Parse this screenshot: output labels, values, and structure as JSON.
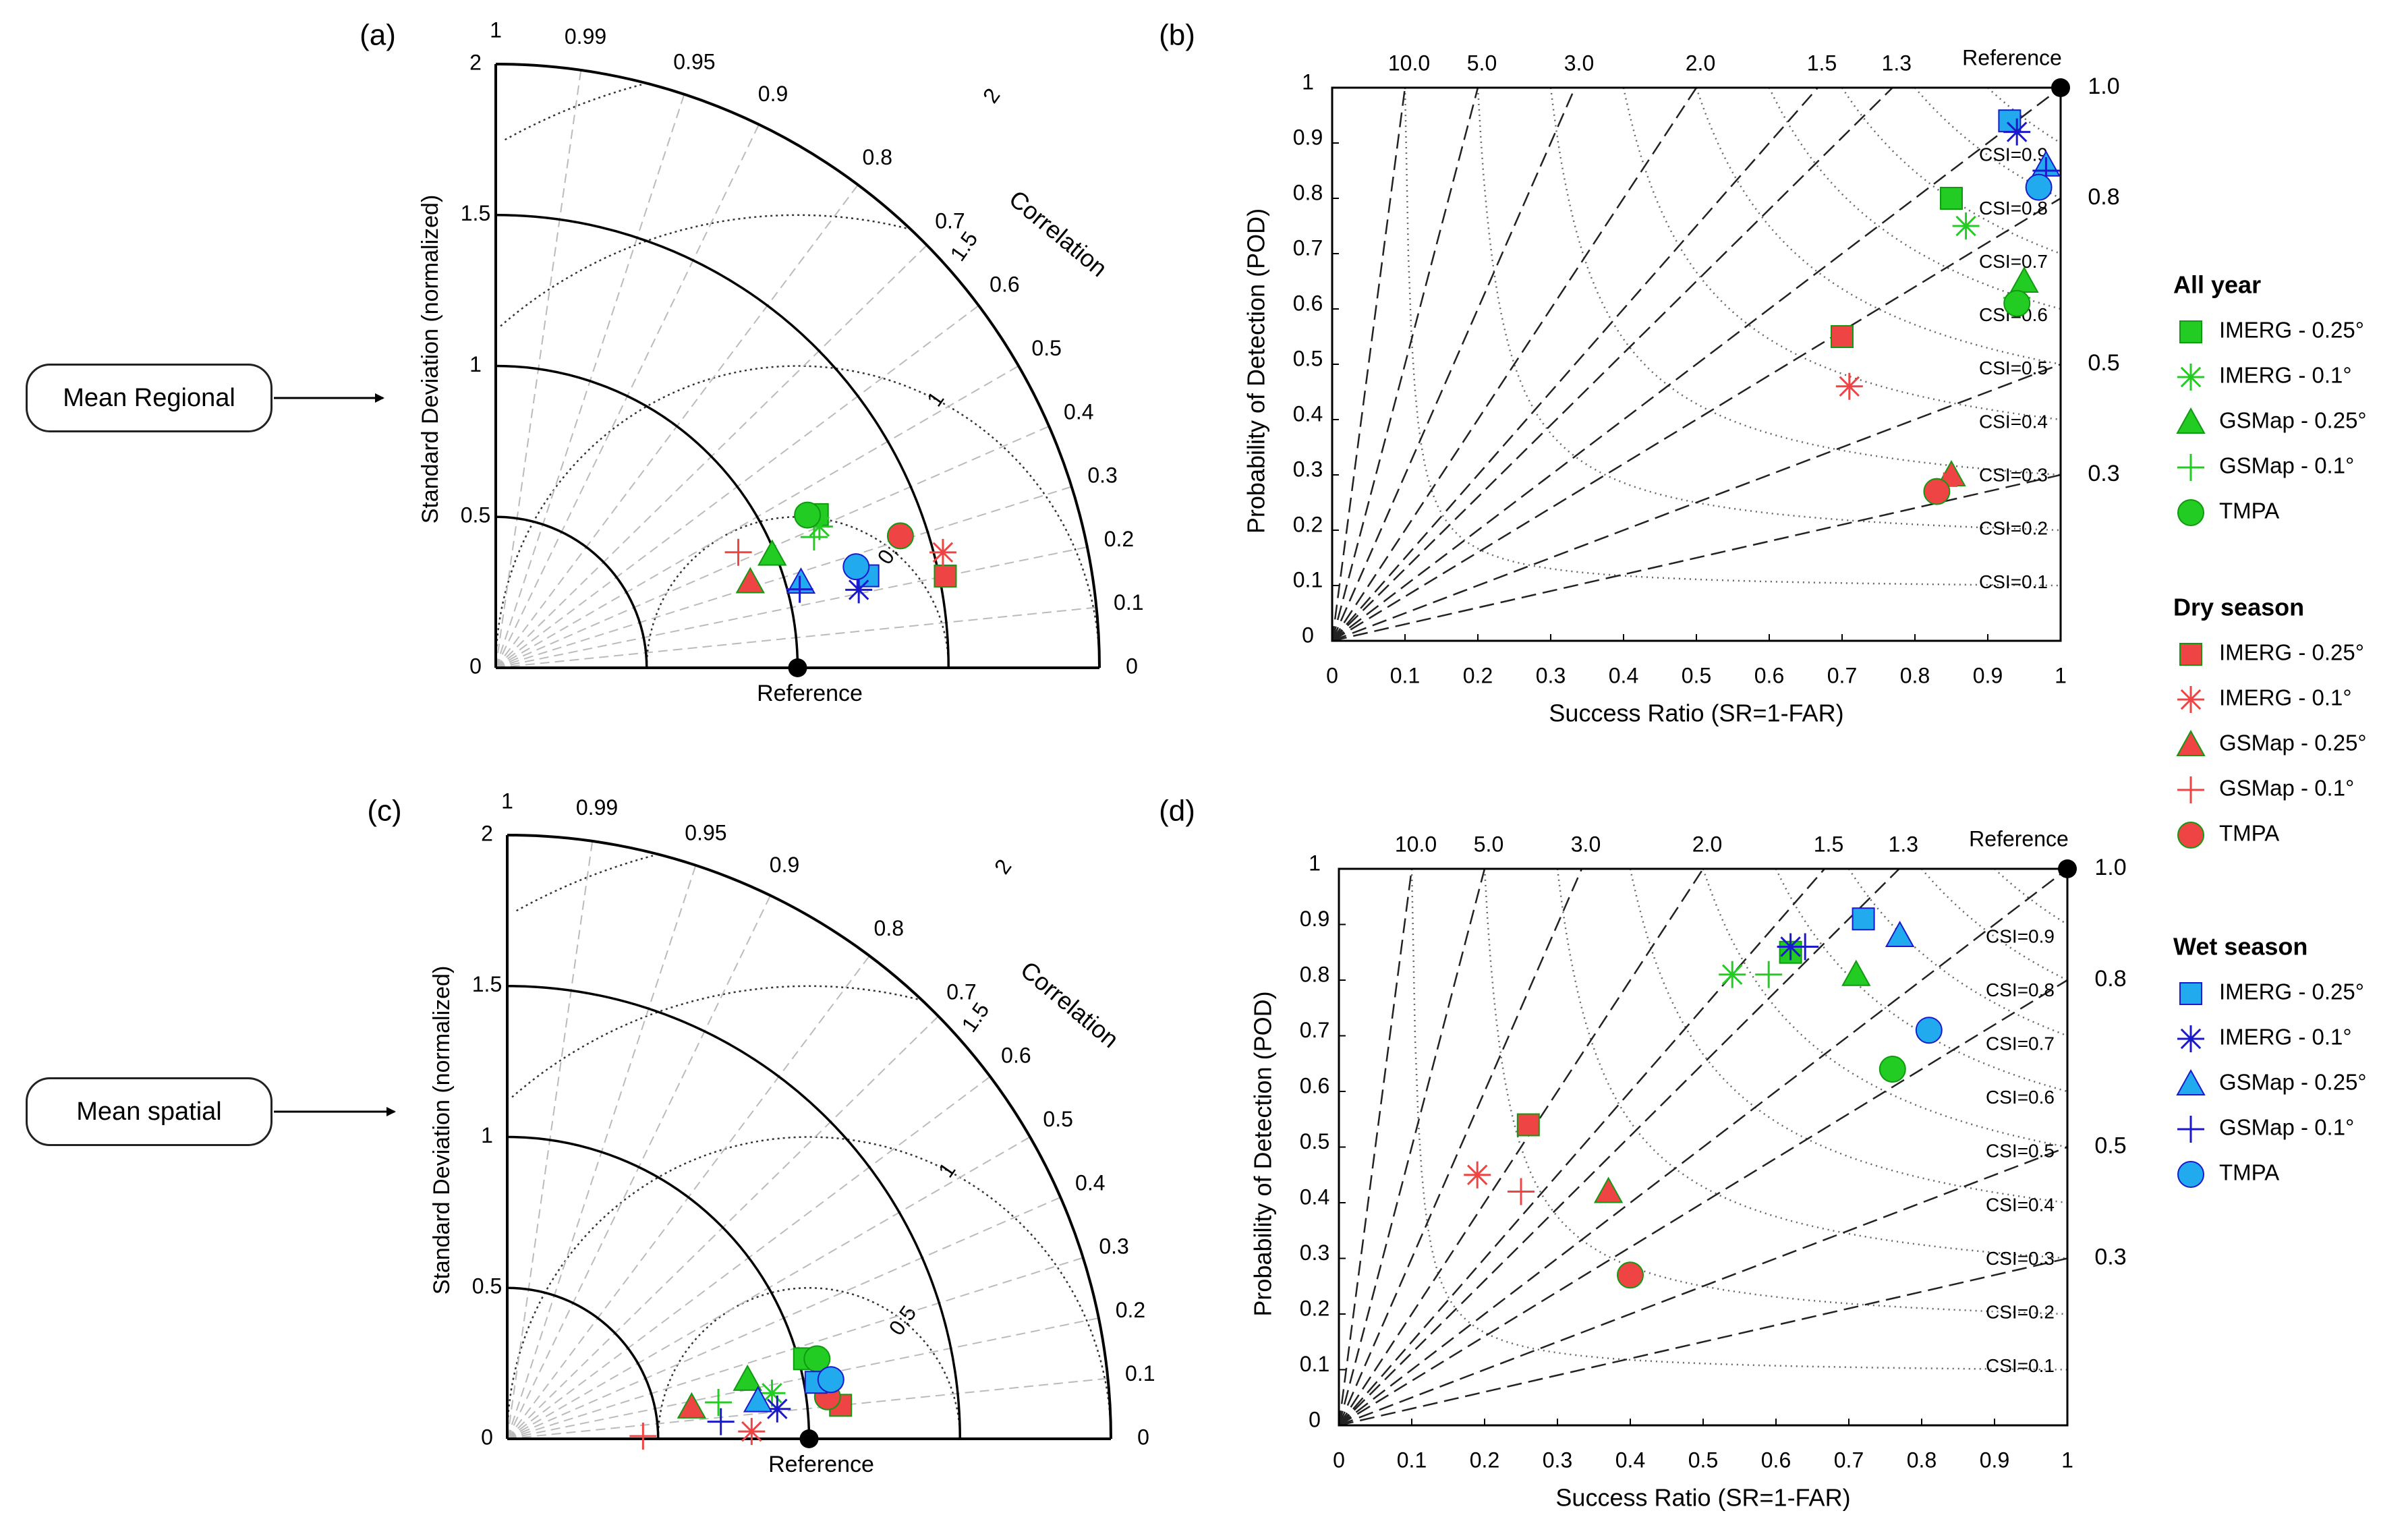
{
  "row_labels": {
    "top": "Mean Regional",
    "bottom": "Mean spatial"
  },
  "colors": {
    "all_year": "#22cc22",
    "dry_season": "#ee4444",
    "wet_season": "#22aaee",
    "wet_season_line": "#1a1acc"
  },
  "legend": {
    "groups": [
      {
        "title": "All year",
        "color_key": "all_year",
        "entries": [
          {
            "label": "IMERG - 0.25°",
            "marker": "square"
          },
          {
            "label": "IMERG - 0.1°",
            "marker": "asterisk"
          },
          {
            "label": "GSMap - 0.25°",
            "marker": "triangle"
          },
          {
            "label": "GSMap - 0.1°",
            "marker": "plus"
          },
          {
            "label": "TMPA",
            "marker": "circle"
          }
        ]
      },
      {
        "title": "Dry season",
        "color_key": "dry_season",
        "entries": [
          {
            "label": "IMERG - 0.25°",
            "marker": "square"
          },
          {
            "label": "IMERG - 0.1°",
            "marker": "asterisk"
          },
          {
            "label": "GSMap - 0.25°",
            "marker": "triangle"
          },
          {
            "label": "GSMap - 0.1°",
            "marker": "plus"
          },
          {
            "label": "TMPA",
            "marker": "circle"
          }
        ]
      },
      {
        "title": "Wet season",
        "color_key": "wet_season",
        "entries": [
          {
            "label": "IMERG - 0.25°",
            "marker": "square"
          },
          {
            "label": "IMERG - 0.1°",
            "marker": "asterisk"
          },
          {
            "label": "GSMap - 0.25°",
            "marker": "triangle"
          },
          {
            "label": "GSMap - 0.1°",
            "marker": "plus"
          },
          {
            "label": "TMPA",
            "marker": "circle"
          }
        ]
      }
    ]
  },
  "chart_data": [
    {
      "panel": "(a)",
      "type": "scatter",
      "subtype": "taylor_diagram",
      "ylabel": "Standard Deviation (normalized)",
      "angle_label": "Correlation",
      "reference_label": "Reference",
      "radial_ticks": [
        "0",
        "0.5",
        "1",
        "1.5",
        "2"
      ],
      "correlation_ticks": [
        "0",
        "0.1",
        "0.2",
        "0.3",
        "0.4",
        "0.5",
        "0.6",
        "0.7",
        "0.8",
        "0.9",
        "0.95",
        "0.99",
        "1"
      ],
      "rms_labels": [
        "0.5",
        "1",
        "1.5",
        "2"
      ],
      "reference_std": 1.0,
      "series": [
        {
          "group": "all_year",
          "points": [
            {
              "product": "IMERG - 0.25°",
              "marker": "square",
              "std": 1.18,
              "corr": 0.43
            },
            {
              "product": "IMERG - 0.1°",
              "marker": "asterisk",
              "std": 1.17,
              "corr": 0.4
            },
            {
              "product": "GSMap - 0.25°",
              "marker": "triangle",
              "std": 0.99,
              "corr": 0.38
            },
            {
              "product": "GSMap - 0.1°",
              "marker": "plus",
              "std": 1.14,
              "corr": 0.38
            },
            {
              "product": "TMPA",
              "marker": "circle",
              "std": 1.15,
              "corr": 0.44
            }
          ]
        },
        {
          "group": "dry_season",
          "points": [
            {
              "product": "IMERG - 0.25°",
              "marker": "square",
              "std": 1.52,
              "corr": 0.2
            },
            {
              "product": "IMERG - 0.1°",
              "marker": "asterisk",
              "std": 1.53,
              "corr": 0.25
            },
            {
              "product": "GSMap - 0.25°",
              "marker": "triangle",
              "std": 0.89,
              "corr": 0.32
            },
            {
              "product": "GSMap - 0.1°",
              "marker": "plus",
              "std": 0.89,
              "corr": 0.43
            },
            {
              "product": "TMPA",
              "marker": "circle",
              "std": 1.41,
              "corr": 0.31
            }
          ]
        },
        {
          "group": "wet_season",
          "points": [
            {
              "product": "IMERG - 0.25°",
              "marker": "square",
              "std": 1.27,
              "corr": 0.24
            },
            {
              "product": "IMERG - 0.1°",
              "marker": "asterisk",
              "std": 1.23,
              "corr": 0.21
            },
            {
              "product": "GSMap - 0.25°",
              "marker": "triangle",
              "std": 1.05,
              "corr": 0.27
            },
            {
              "product": "GSMap - 0.1°",
              "marker": "plus",
              "std": 1.04,
              "corr": 0.25
            },
            {
              "product": "TMPA",
              "marker": "circle",
              "std": 1.24,
              "corr": 0.27
            }
          ]
        }
      ]
    },
    {
      "panel": "(b)",
      "type": "scatter",
      "subtype": "performance_diagram",
      "xlabel": "Success Ratio (SR=1-FAR)",
      "ylabel": "Probability of Detection (POD)",
      "xlim": [
        0,
        1
      ],
      "ylim": [
        0,
        1
      ],
      "x_ticks": [
        "0",
        "0.1",
        "0.2",
        "0.3",
        "0.4",
        "0.5",
        "0.6",
        "0.7",
        "0.8",
        "0.9",
        "1"
      ],
      "y_ticks": [
        "0",
        "0.1",
        "0.2",
        "0.3",
        "0.4",
        "0.5",
        "0.6",
        "0.7",
        "0.8",
        "0.9",
        "1"
      ],
      "bias_labels": [
        "10.0",
        "5.0",
        "3.0",
        "2.0",
        "1.5",
        "1.3"
      ],
      "bias_values": [
        10,
        5,
        3,
        2,
        1.5,
        1.3,
        1.0,
        0.8,
        0.5,
        0.3
      ],
      "right_bias_labels": [
        "1.0",
        "0.8",
        "0.5",
        "0.3"
      ],
      "csi_labels": [
        "CSI=0.9",
        "CSI=0.8",
        "CSI=0.7",
        "CSI=0.6",
        "CSI=0.5",
        "CSI=0.4",
        "CSI=0.3",
        "CSI=0.2",
        "CSI=0.1"
      ],
      "reference_label": "Reference",
      "series": [
        {
          "group": "all_year",
          "points": [
            {
              "product": "IMERG - 0.25°",
              "marker": "square",
              "sr": 0.85,
              "pod": 0.8
            },
            {
              "product": "IMERG - 0.1°",
              "marker": "asterisk",
              "sr": 0.87,
              "pod": 0.75
            },
            {
              "product": "GSMap - 0.25°",
              "marker": "triangle",
              "sr": 0.95,
              "pod": 0.65
            },
            {
              "product": "GSMap - 0.1°",
              "marker": "plus",
              "sr": 0.94,
              "pod": 0.62
            },
            {
              "product": "TMPA",
              "marker": "circle",
              "sr": 0.94,
              "pod": 0.61
            }
          ]
        },
        {
          "group": "dry_season",
          "points": [
            {
              "product": "IMERG - 0.25°",
              "marker": "square",
              "sr": 0.7,
              "pod": 0.55
            },
            {
              "product": "IMERG - 0.1°",
              "marker": "asterisk",
              "sr": 0.71,
              "pod": 0.46
            },
            {
              "product": "GSMap - 0.25°",
              "marker": "triangle",
              "sr": 0.85,
              "pod": 0.3
            },
            {
              "product": "GSMap - 0.1°",
              "marker": "plus",
              "sr": 0.84,
              "pod": 0.28
            },
            {
              "product": "TMPA",
              "marker": "circle",
              "sr": 0.83,
              "pod": 0.27
            }
          ]
        },
        {
          "group": "wet_season",
          "points": [
            {
              "product": "IMERG - 0.25°",
              "marker": "square",
              "sr": 0.93,
              "pod": 0.94
            },
            {
              "product": "IMERG - 0.1°",
              "marker": "asterisk",
              "sr": 0.94,
              "pod": 0.92
            },
            {
              "product": "GSMap - 0.25°",
              "marker": "triangle",
              "sr": 0.98,
              "pod": 0.86
            },
            {
              "product": "GSMap - 0.1°",
              "marker": "plus",
              "sr": 0.98,
              "pod": 0.85
            },
            {
              "product": "TMPA",
              "marker": "circle",
              "sr": 0.97,
              "pod": 0.82
            }
          ]
        }
      ]
    },
    {
      "panel": "(c)",
      "type": "scatter",
      "subtype": "taylor_diagram",
      "ylabel": "Standard Deviation (normalized)",
      "angle_label": "Correlation",
      "reference_label": "Reference",
      "radial_ticks": [
        "0",
        "0.5",
        "1",
        "1.5",
        "2"
      ],
      "correlation_ticks": [
        "0",
        "0.1",
        "0.2",
        "0.3",
        "0.4",
        "0.5",
        "0.6",
        "0.7",
        "0.8",
        "0.9",
        "0.95",
        "0.99",
        "1"
      ],
      "rms_labels": [
        "0.5",
        "1",
        "1.5",
        "2"
      ],
      "reference_std": 1.0,
      "series": [
        {
          "group": "all_year",
          "points": [
            {
              "product": "IMERG - 0.25°",
              "marker": "square",
              "std": 1.02,
              "corr": 0.26
            },
            {
              "product": "IMERG - 0.1°",
              "marker": "asterisk",
              "std": 0.89,
              "corr": 0.17
            },
            {
              "product": "GSMap - 0.25°",
              "marker": "triangle",
              "std": 0.82,
              "corr": 0.24
            },
            {
              "product": "GSMap - 0.1°",
              "marker": "plus",
              "std": 0.71,
              "corr": 0.17
            },
            {
              "product": "TMPA",
              "marker": "circle",
              "std": 1.06,
              "corr": 0.25
            }
          ]
        },
        {
          "group": "dry_season",
          "points": [
            {
              "product": "IMERG - 0.25°",
              "marker": "square",
              "std": 1.11,
              "corr": 0.1
            },
            {
              "product": "IMERG - 0.1°",
              "marker": "asterisk",
              "std": 0.81,
              "corr": 0.03
            },
            {
              "product": "GSMap - 0.25°",
              "marker": "triangle",
              "std": 0.62,
              "corr": 0.17
            },
            {
              "product": "GSMap - 0.1°",
              "marker": "plus",
              "std": 0.45,
              "corr": 0.02
            },
            {
              "product": "TMPA",
              "marker": "circle",
              "std": 1.07,
              "corr": 0.13
            }
          ]
        },
        {
          "group": "wet_season",
          "points": [
            {
              "product": "IMERG - 0.25°",
              "marker": "square",
              "std": 1.04,
              "corr": 0.18
            },
            {
              "product": "IMERG - 0.1°",
              "marker": "asterisk",
              "std": 0.9,
              "corr": 0.11
            },
            {
              "product": "GSMap - 0.25°",
              "marker": "triangle",
              "std": 0.84,
              "corr": 0.15
            },
            {
              "product": "GSMap - 0.1°",
              "marker": "plus",
              "std": 0.71,
              "corr": 0.08
            },
            {
              "product": "TMPA",
              "marker": "circle",
              "std": 1.09,
              "corr": 0.18
            }
          ]
        }
      ]
    },
    {
      "panel": "(d)",
      "type": "scatter",
      "subtype": "performance_diagram",
      "xlabel": "Success Ratio (SR=1-FAR)",
      "ylabel": "Probability of Detection (POD)",
      "xlim": [
        0,
        1
      ],
      "ylim": [
        0,
        1
      ],
      "x_ticks": [
        "0",
        "0.1",
        "0.2",
        "0.3",
        "0.4",
        "0.5",
        "0.6",
        "0.7",
        "0.8",
        "0.9",
        "1"
      ],
      "y_ticks": [
        "0",
        "0.1",
        "0.2",
        "0.3",
        "0.4",
        "0.5",
        "0.6",
        "0.7",
        "0.8",
        "0.9",
        "1"
      ],
      "bias_labels": [
        "10.0",
        "5.0",
        "3.0",
        "2.0",
        "1.5",
        "1.3"
      ],
      "bias_values": [
        10,
        5,
        3,
        2,
        1.5,
        1.3,
        1.0,
        0.8,
        0.5,
        0.3
      ],
      "right_bias_labels": [
        "1.0",
        "0.8",
        "0.5",
        "0.3"
      ],
      "csi_labels": [
        "CSI=0.9",
        "CSI=0.8",
        "CSI=0.7",
        "CSI=0.6",
        "CSI=0.5",
        "CSI=0.4",
        "CSI=0.3",
        "CSI=0.2",
        "CSI=0.1"
      ],
      "reference_label": "Reference",
      "series": [
        {
          "group": "all_year",
          "points": [
            {
              "product": "IMERG - 0.25°",
              "marker": "square",
              "sr": 0.62,
              "pod": 0.85
            },
            {
              "product": "IMERG - 0.1°",
              "marker": "asterisk",
              "sr": 0.54,
              "pod": 0.81
            },
            {
              "product": "GSMap - 0.25°",
              "marker": "triangle",
              "sr": 0.71,
              "pod": 0.81
            },
            {
              "product": "GSMap - 0.1°",
              "marker": "plus",
              "sr": 0.59,
              "pod": 0.81
            },
            {
              "product": "TMPA",
              "marker": "circle",
              "sr": 0.76,
              "pod": 0.64
            }
          ]
        },
        {
          "group": "dry_season",
          "points": [
            {
              "product": "IMERG - 0.25°",
              "marker": "square",
              "sr": 0.26,
              "pod": 0.54
            },
            {
              "product": "IMERG - 0.1°",
              "marker": "asterisk",
              "sr": 0.19,
              "pod": 0.45
            },
            {
              "product": "GSMap - 0.25°",
              "marker": "triangle",
              "sr": 0.37,
              "pod": 0.42
            },
            {
              "product": "GSMap - 0.1°",
              "marker": "plus",
              "sr": 0.25,
              "pod": 0.42
            },
            {
              "product": "TMPA",
              "marker": "circle",
              "sr": 0.4,
              "pod": 0.27
            }
          ]
        },
        {
          "group": "wet_season",
          "points": [
            {
              "product": "IMERG - 0.25°",
              "marker": "square",
              "sr": 0.72,
              "pod": 0.91
            },
            {
              "product": "IMERG - 0.1°",
              "marker": "asterisk",
              "sr": 0.62,
              "pod": 0.86
            },
            {
              "product": "GSMap - 0.25°",
              "marker": "triangle",
              "sr": 0.77,
              "pod": 0.88
            },
            {
              "product": "GSMap - 0.1°",
              "marker": "plus",
              "sr": 0.64,
              "pod": 0.86
            },
            {
              "product": "TMPA",
              "marker": "circle",
              "sr": 0.81,
              "pod": 0.71
            }
          ]
        }
      ]
    }
  ]
}
